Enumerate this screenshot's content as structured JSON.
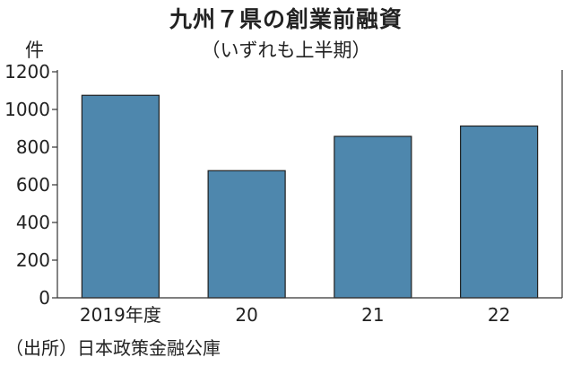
{
  "chart_data": {
    "type": "bar",
    "title": "九州７県の創業前融資",
    "subtitle": "（いずれも上半期）",
    "ylabel": "件",
    "xlabel": "",
    "categories": [
      "2019年度",
      "20",
      "21",
      "22"
    ],
    "values": [
      1075,
      675,
      857,
      912
    ],
    "ylim": [
      0,
      1200
    ],
    "yticks": [
      0,
      200,
      400,
      600,
      800,
      1000,
      1200
    ],
    "grid": false,
    "bar_color": "#4e87ad",
    "source": "（出所）日本政策金融公庫"
  }
}
